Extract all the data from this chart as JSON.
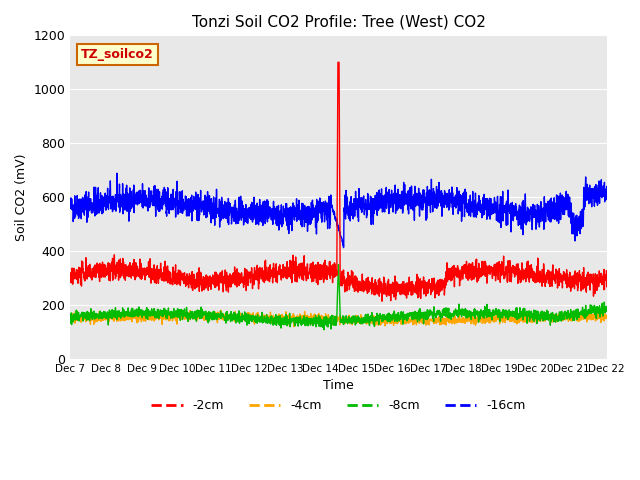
{
  "title": "Tonzi Soil CO2 Profile: Tree (West) CO2",
  "ylabel": "Soil CO2 (mV)",
  "xlabel": "Time",
  "ylim": [
    0,
    1200
  ],
  "x_tick_labels": [
    "Dec 7",
    "Dec 8",
    "Dec 9",
    "Dec 10",
    "Dec 11",
    "Dec 12",
    "Dec 13",
    "Dec 14",
    "Dec 15",
    "Dec 16",
    "Dec 17",
    "Dec 18",
    "Dec 19",
    "Dec 20",
    "Dec 21",
    "Dec 22"
  ],
  "bg_color": "#e8e8e8",
  "legend_label": "TZ_soilco2",
  "legend_bg": "#ffffcc",
  "legend_border": "#cc6600",
  "line_colors": {
    "2cm": "#ff0000",
    "4cm": "#ffa500",
    "8cm": "#00bb00",
    "16cm": "#0000ff"
  },
  "legend_entries": [
    {
      "label": "-2cm",
      "color": "#ff0000"
    },
    {
      "label": "-4cm",
      "color": "#ffa500"
    },
    {
      "label": "-8cm",
      "color": "#00bb00"
    },
    {
      "label": "-16cm",
      "color": "#0000ff"
    }
  ],
  "n_points": 2400
}
